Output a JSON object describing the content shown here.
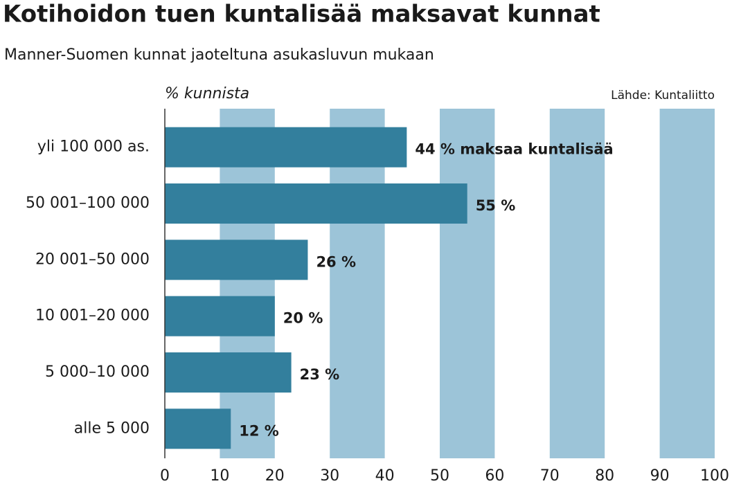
{
  "chart_data": {
    "type": "bar",
    "orientation": "horizontal",
    "title": "Kotihoidon tuen kuntalisää maksavat kunnat",
    "subtitle": "Manner-Suomen kunnat jaoteltuna asukasluvun mukaan",
    "x_label": "% kunnista",
    "source": "Lähde: Kuntaliitto",
    "categories": [
      "yli 100 000 as.",
      "50 001–100 000",
      "20 001–50 000",
      "10 001–20 000",
      "5 000–10 000",
      "alle 5 000"
    ],
    "values": [
      44,
      55,
      26,
      20,
      23,
      12
    ],
    "value_labels": [
      "44 % maksaa kuntalisää",
      "55 %",
      "26 %",
      "20 %",
      "23 %",
      "12 %"
    ],
    "color": "#337f9d",
    "xlim": [
      0,
      100
    ],
    "xticks": [
      0,
      10,
      20,
      30,
      40,
      50,
      60,
      70,
      80,
      90,
      100
    ],
    "grid": true,
    "grid_color": "#9cc4d8"
  }
}
